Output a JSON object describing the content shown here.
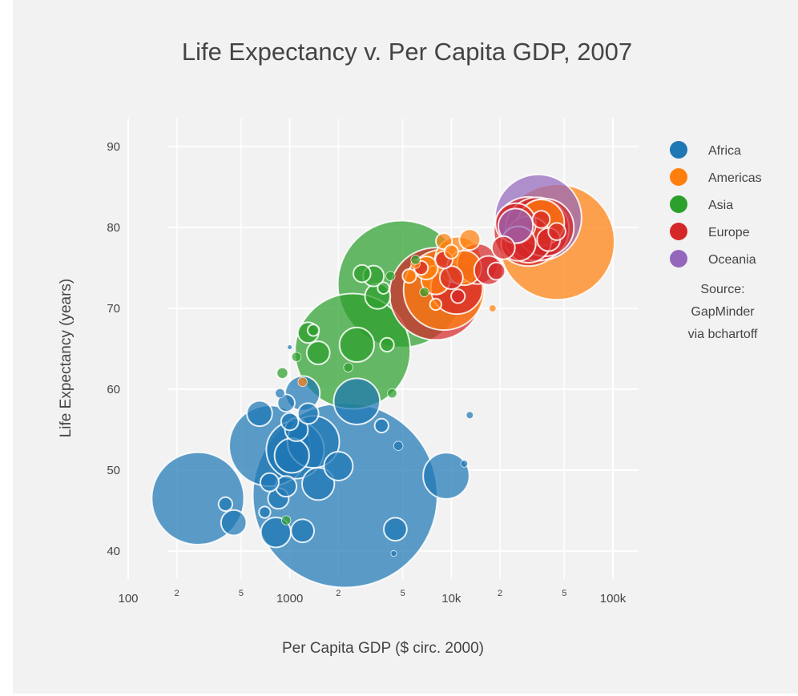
{
  "chart_data": {
    "type": "scatter",
    "subtype": "bubble",
    "title": "Life Expectancy v. Per Capita GDP, 2007",
    "xlabel": "Per Capita GDP ($ circ. 2000)",
    "ylabel": "Life Expectancy (years)",
    "x_scale": "log",
    "xlim": [
      100,
      100000
    ],
    "ylim": [
      38,
      92
    ],
    "grid": true,
    "x_ticks": [
      {
        "value": 100,
        "label": "100",
        "major": true
      },
      {
        "value": 200,
        "label": "2",
        "major": false
      },
      {
        "value": 500,
        "label": "5",
        "major": false
      },
      {
        "value": 1000,
        "label": "1000",
        "major": true
      },
      {
        "value": 2000,
        "label": "2",
        "major": false
      },
      {
        "value": 5000,
        "label": "5",
        "major": false
      },
      {
        "value": 10000,
        "label": "10k",
        "major": true
      },
      {
        "value": 20000,
        "label": "2",
        "major": false
      },
      {
        "value": 50000,
        "label": "5",
        "major": false
      },
      {
        "value": 100000,
        "label": "100k",
        "major": true
      }
    ],
    "y_ticks": [
      {
        "value": 40,
        "label": "40"
      },
      {
        "value": 50,
        "label": "50"
      },
      {
        "value": 60,
        "label": "60"
      },
      {
        "value": 70,
        "label": "70"
      },
      {
        "value": 80,
        "label": "80"
      },
      {
        "value": 90,
        "label": "90"
      }
    ],
    "legend_position": "right",
    "bubble_size": "area-scaled (relative)",
    "series": [
      {
        "name": "Africa",
        "color": "#1f77b4",
        "points": [
          {
            "x": 270,
            "y": 46.5,
            "size": 80
          },
          {
            "x": 2200,
            "y": 46.9,
            "size": 160
          },
          {
            "x": 750,
            "y": 53.0,
            "size": 70
          },
          {
            "x": 1080,
            "y": 52.5,
            "size": 50
          },
          {
            "x": 1400,
            "y": 53.5,
            "size": 45
          },
          {
            "x": 9300,
            "y": 49.3,
            "size": 40
          },
          {
            "x": 2600,
            "y": 58.5,
            "size": 40
          },
          {
            "x": 1200,
            "y": 59.5,
            "size": 30
          },
          {
            "x": 1030,
            "y": 51.8,
            "size": 30
          },
          {
            "x": 1500,
            "y": 48.3,
            "size": 28
          },
          {
            "x": 2000,
            "y": 50.5,
            "size": 25
          },
          {
            "x": 650,
            "y": 57.0,
            "size": 22
          },
          {
            "x": 450,
            "y": 43.5,
            "size": 22
          },
          {
            "x": 820,
            "y": 42.3,
            "size": 26
          },
          {
            "x": 1200,
            "y": 42.5,
            "size": 20
          },
          {
            "x": 4500,
            "y": 42.7,
            "size": 20
          },
          {
            "x": 850,
            "y": 46.5,
            "size": 18
          },
          {
            "x": 950,
            "y": 48.0,
            "size": 18
          },
          {
            "x": 950,
            "y": 58.3,
            "size": 15
          },
          {
            "x": 1000,
            "y": 56.0,
            "size": 15
          },
          {
            "x": 750,
            "y": 48.5,
            "size": 16
          },
          {
            "x": 1100,
            "y": 55.0,
            "size": 20
          },
          {
            "x": 1300,
            "y": 57.0,
            "size": 18
          },
          {
            "x": 3700,
            "y": 55.5,
            "size": 12
          },
          {
            "x": 4700,
            "y": 53.0,
            "size": 8
          },
          {
            "x": 13000,
            "y": 56.8,
            "size": 6
          },
          {
            "x": 12000,
            "y": 50.8,
            "size": 6
          },
          {
            "x": 4400,
            "y": 39.7,
            "size": 5
          },
          {
            "x": 400,
            "y": 45.8,
            "size": 12
          },
          {
            "x": 700,
            "y": 44.8,
            "size": 10
          },
          {
            "x": 870,
            "y": 59.5,
            "size": 8
          },
          {
            "x": 1000,
            "y": 65.2,
            "size": 4
          }
        ]
      },
      {
        "name": "Americas",
        "color": "#ff7f0e",
        "points": [
          {
            "x": 45000,
            "y": 78.2,
            "size": 100
          },
          {
            "x": 9000,
            "y": 72.3,
            "size": 70
          },
          {
            "x": 11000,
            "y": 76.0,
            "size": 40
          },
          {
            "x": 36000,
            "y": 80.6,
            "size": 40
          },
          {
            "x": 12000,
            "y": 75.0,
            "size": 30
          },
          {
            "x": 8000,
            "y": 73.5,
            "size": 25
          },
          {
            "x": 7000,
            "y": 75.0,
            "size": 20
          },
          {
            "x": 13000,
            "y": 78.5,
            "size": 18
          },
          {
            "x": 9000,
            "y": 78.3,
            "size": 14
          },
          {
            "x": 10000,
            "y": 77.0,
            "size": 12
          },
          {
            "x": 5500,
            "y": 74.0,
            "size": 12
          },
          {
            "x": 8000,
            "y": 70.5,
            "size": 10
          },
          {
            "x": 1200,
            "y": 60.9,
            "size": 8
          },
          {
            "x": 18000,
            "y": 70.0,
            "size": 6
          },
          {
            "x": 6000,
            "y": 75.5,
            "size": 8
          }
        ]
      },
      {
        "name": "Asia",
        "color": "#2ca02c",
        "points": [
          {
            "x": 4900,
            "y": 73.0,
            "size": 110
          },
          {
            "x": 2450,
            "y": 64.7,
            "size": 100
          },
          {
            "x": 2600,
            "y": 65.5,
            "size": 30
          },
          {
            "x": 3500,
            "y": 71.5,
            "size": 22
          },
          {
            "x": 3300,
            "y": 74.0,
            "size": 18
          },
          {
            "x": 2800,
            "y": 74.3,
            "size": 15
          },
          {
            "x": 1500,
            "y": 64.5,
            "size": 20
          },
          {
            "x": 1300,
            "y": 67.0,
            "size": 18
          },
          {
            "x": 4000,
            "y": 65.5,
            "size": 12
          },
          {
            "x": 1400,
            "y": 67.3,
            "size": 10
          },
          {
            "x": 900,
            "y": 62.0,
            "size": 10
          },
          {
            "x": 4300,
            "y": 59.5,
            "size": 8
          },
          {
            "x": 4200,
            "y": 74.0,
            "size": 8
          },
          {
            "x": 950,
            "y": 43.8,
            "size": 8
          },
          {
            "x": 1100,
            "y": 64.0,
            "size": 8
          },
          {
            "x": 3800,
            "y": 72.5,
            "size": 10
          },
          {
            "x": 2300,
            "y": 62.7,
            "size": 8
          },
          {
            "x": 6000,
            "y": 76.0,
            "size": 8
          },
          {
            "x": 6800,
            "y": 72.0,
            "size": 8
          }
        ]
      },
      {
        "name": "Europe",
        "color": "#d62728",
        "points": [
          {
            "x": 8000,
            "y": 71.8,
            "size": 80
          },
          {
            "x": 10800,
            "y": 72.5,
            "size": 45
          },
          {
            "x": 10000,
            "y": 73.8,
            "size": 20
          },
          {
            "x": 14500,
            "y": 75.5,
            "size": 35
          },
          {
            "x": 17000,
            "y": 74.7,
            "size": 25
          },
          {
            "x": 19000,
            "y": 74.6,
            "size": 15
          },
          {
            "x": 30000,
            "y": 79.5,
            "size": 60
          },
          {
            "x": 34000,
            "y": 79.8,
            "size": 55
          },
          {
            "x": 38000,
            "y": 80.0,
            "size": 50
          },
          {
            "x": 30000,
            "y": 78.5,
            "size": 40
          },
          {
            "x": 25000,
            "y": 80.5,
            "size": 35
          },
          {
            "x": 26000,
            "y": 78.0,
            "size": 30
          },
          {
            "x": 21000,
            "y": 77.5,
            "size": 20
          },
          {
            "x": 9000,
            "y": 76.0,
            "size": 15
          },
          {
            "x": 6500,
            "y": 75.0,
            "size": 12
          },
          {
            "x": 40000,
            "y": 78.5,
            "size": 20
          },
          {
            "x": 45000,
            "y": 79.5,
            "size": 15
          },
          {
            "x": 36000,
            "y": 81.0,
            "size": 15
          },
          {
            "x": 11000,
            "y": 71.5,
            "size": 12
          }
        ]
      },
      {
        "name": "Oceania",
        "color": "#9467bd",
        "points": [
          {
            "x": 34500,
            "y": 81.2,
            "size": 75
          },
          {
            "x": 25000,
            "y": 80.2,
            "size": 30
          }
        ]
      }
    ],
    "annotation": [
      "Source:",
      "GapMinder",
      "via bchartoff"
    ]
  }
}
